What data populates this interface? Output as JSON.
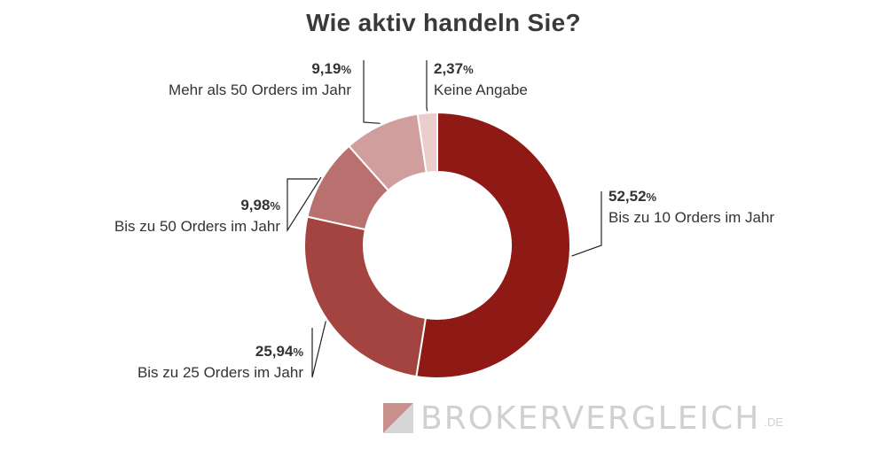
{
  "chart_data": {
    "type": "pie",
    "title": "Wie aktiv handeln Sie?",
    "donut": true,
    "unit": "%",
    "slices": [
      {
        "label": "Bis zu 10 Orders im Jahr",
        "value": 52.52,
        "display": "52,52",
        "color": "#8e1915"
      },
      {
        "label": "Bis zu 25 Orders im Jahr",
        "value": 25.94,
        "display": "25,94",
        "color": "#a34440"
      },
      {
        "label": "Bis zu 50 Orders im Jahr",
        "value": 9.98,
        "display": "9,98",
        "color": "#b97170"
      },
      {
        "label": "Mehr als 50 Orders im Jahr",
        "value": 9.19,
        "display": "9,19",
        "color": "#d09e9c"
      },
      {
        "label": "Keine Angabe",
        "value": 2.37,
        "display": "2,37",
        "color": "#ebcdcd"
      }
    ]
  },
  "brand": {
    "name": "BrokerVergleich",
    "tld": ".de",
    "colors": {
      "accent": "#c98f8c",
      "gray": "#d0d0d0"
    }
  }
}
